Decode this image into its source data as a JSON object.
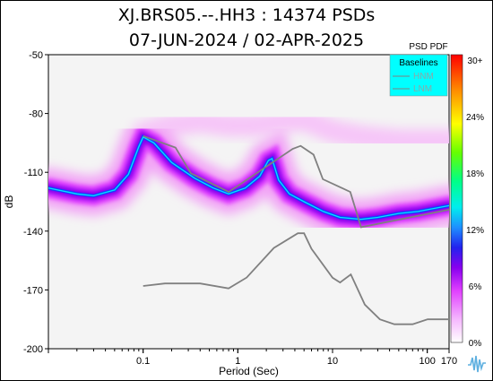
{
  "title_line1": "XJ.BRS05.--.HH3 : 14374 PSDs",
  "title_line2": "07-JUN-2024 / 02-APR-2025",
  "colorbar": {
    "title": "PSD PDF",
    "ticks": [
      "30+",
      "24%",
      "18%",
      "12%",
      "6%",
      "0%"
    ]
  },
  "legend": {
    "title": "Baselines",
    "items": [
      "HNM",
      "LNM"
    ],
    "bg_color": "#00ffff"
  },
  "icon": "seismic-wave-logo-icon",
  "chart_data": {
    "type": "heatmap",
    "title": "XJ.BRS05.--.HH3 : 14374 PSDs",
    "subtitle": "07-JUN-2024 / 02-APR-2025",
    "xlabel": "Period (Sec)",
    "ylabel": "dB",
    "xscale": "log",
    "xlim": [
      0.01,
      170
    ],
    "ylim": [
      -200,
      -50
    ],
    "x_ticks": [
      0.1,
      1,
      10,
      100,
      170
    ],
    "x_tick_labels": [
      "0.1",
      "1",
      "10",
      "100",
      "170"
    ],
    "y_ticks": [
      -50,
      -80,
      -110,
      -140,
      -170,
      -200
    ],
    "y_tick_labels": [
      "-50",
      "-80",
      "-110",
      "-140",
      "-170",
      "-200"
    ],
    "colorbar_range": [
      0,
      30
    ],
    "colorbar_unit": "%",
    "series": [
      {
        "name": "HNM",
        "color": "#808080",
        "x": [
          0.1,
          0.22,
          0.32,
          0.8,
          3.8,
          4.6,
          6.3,
          7.9,
          15.4,
          20,
          354
        ],
        "y": [
          -91.5,
          -97.4,
          -110.5,
          -120,
          -98,
          -96.5,
          -101,
          -113.5,
          -120,
          -138,
          -126
        ]
      },
      {
        "name": "LNM",
        "color": "#808080",
        "x": [
          0.1,
          0.17,
          0.4,
          0.8,
          1.24,
          2.4,
          4.3,
          5,
          6,
          10,
          12,
          15.6,
          21.9,
          31.6,
          45,
          70,
          101,
          154,
          328
        ],
        "y": [
          -168,
          -166.7,
          -166.7,
          -169.2,
          -163.7,
          -148.6,
          -141.1,
          -141.1,
          -149,
          -163.8,
          -166.2,
          -162.1,
          -177.5,
          -185,
          -187.5,
          -187.5,
          -185,
          -185,
          -185
        ]
      }
    ],
    "heatmap_lines": [
      {
        "name": "mode-low",
        "x": [
          0.01,
          0.02,
          0.03,
          0.05,
          0.07,
          0.09,
          0.1,
          0.13,
          0.2,
          0.35,
          0.55,
          0.8,
          1.2,
          1.7,
          2.1,
          2.3,
          2.7,
          3.5,
          5,
          8,
          12,
          20,
          30,
          50,
          80,
          170
        ],
        "y": [
          -118,
          -121,
          -122,
          -119,
          -111,
          -97,
          -92,
          -95,
          -105,
          -113,
          -118,
          -121,
          -118,
          -112,
          -104,
          -103,
          -114,
          -121,
          -125,
          -130,
          -133,
          -134,
          -133,
          -131,
          -130,
          -127
        ]
      },
      {
        "name": "mode-high",
        "x": [
          0.1,
          0.2,
          0.4,
          0.8,
          1.5,
          3,
          5,
          10,
          20,
          50,
          170
        ],
        "y": [
          -90,
          -86,
          -84,
          -86,
          -86,
          -84,
          -83,
          -89,
          -92,
          -94,
          -94
        ]
      }
    ]
  }
}
